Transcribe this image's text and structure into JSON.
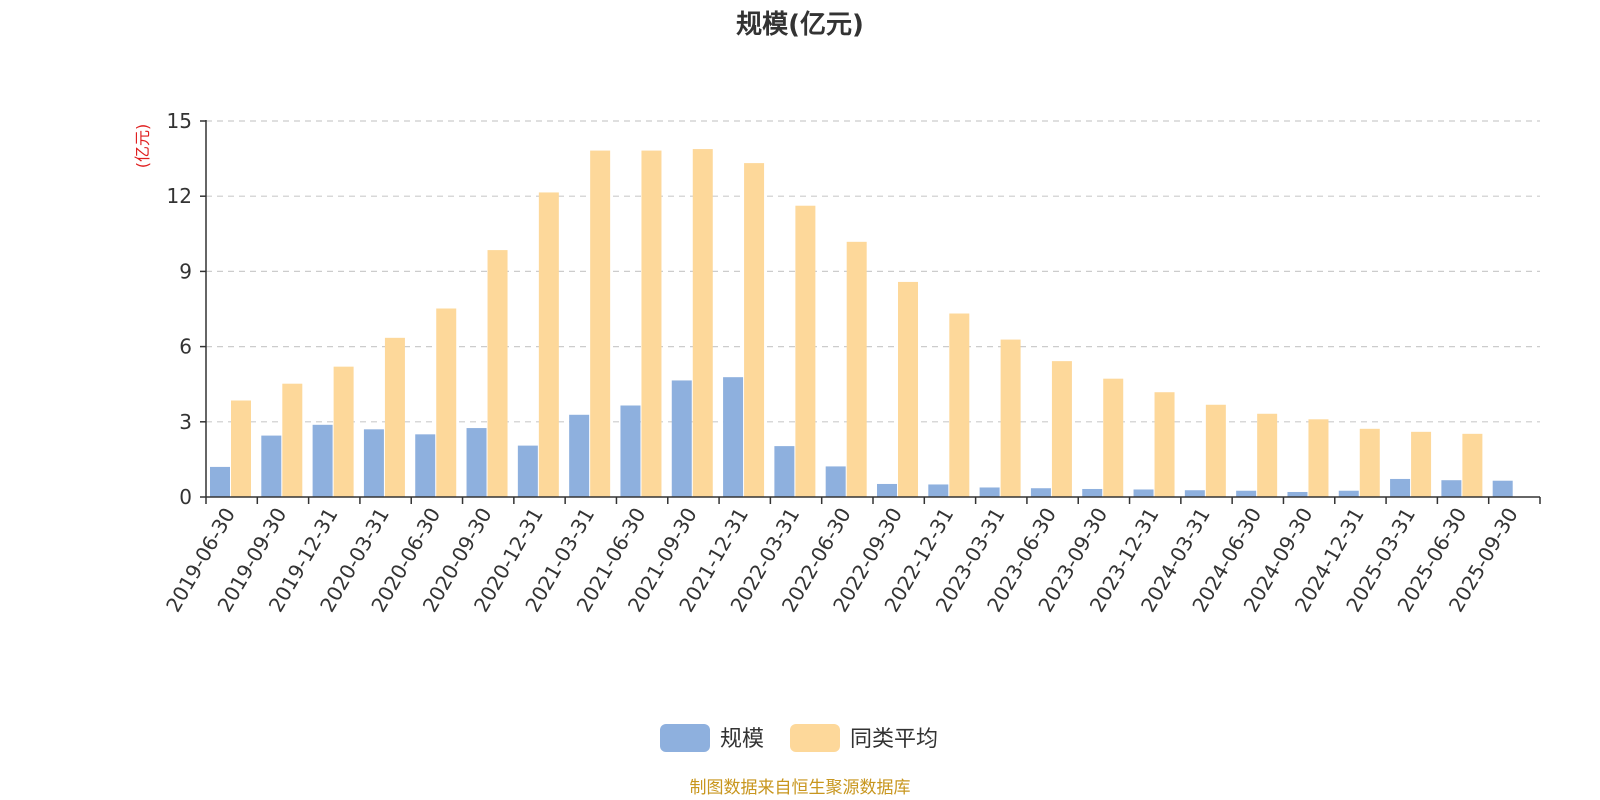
{
  "colors": {
    "series1": "#8eb0de",
    "series2": "#fdd89a",
    "grid": "#cccccc",
    "axis": "#333333",
    "unit": "#e02020",
    "source": "#c8961e"
  },
  "chart_data": {
    "type": "bar",
    "title": "规模(亿元)",
    "ylabel": "(亿元)",
    "ylim": [
      0,
      15
    ],
    "yticks": [
      0,
      3,
      6,
      9,
      12,
      15
    ],
    "grid": true,
    "legend_position": "bottom-center",
    "categories": [
      "2019-06-30",
      "2019-09-30",
      "2019-12-31",
      "2020-03-31",
      "2020-06-30",
      "2020-09-30",
      "2020-12-31",
      "2021-03-31",
      "2021-06-30",
      "2021-09-30",
      "2021-12-31",
      "2022-03-31",
      "2022-06-30",
      "2022-09-30",
      "2022-12-31",
      "2023-03-31",
      "2023-06-30",
      "2023-09-30",
      "2023-12-31",
      "2024-03-31",
      "2024-06-30",
      "2024-09-30",
      "2024-12-31",
      "2025-03-31",
      "2025-06-30",
      "2025-09-30"
    ],
    "series": [
      {
        "name": "规模",
        "color": "#8eb0de",
        "values": [
          1.2,
          2.45,
          2.88,
          2.7,
          2.5,
          2.75,
          2.05,
          3.28,
          3.65,
          4.65,
          4.78,
          2.03,
          1.22,
          0.52,
          0.5,
          0.38,
          0.35,
          0.32,
          0.3,
          0.27,
          0.25,
          0.2,
          0.25,
          0.72,
          0.67,
          0.65
        ]
      },
      {
        "name": "同类平均",
        "color": "#fdd89a",
        "values": [
          3.85,
          4.52,
          5.2,
          6.35,
          7.52,
          9.85,
          12.15,
          13.82,
          13.82,
          13.88,
          13.32,
          11.62,
          10.18,
          8.58,
          7.32,
          6.28,
          5.42,
          4.72,
          4.18,
          3.68,
          3.32,
          3.1,
          2.72,
          2.6,
          2.52,
          null
        ]
      }
    ]
  },
  "footer": {
    "source": "制图数据来自恒生聚源数据库"
  }
}
